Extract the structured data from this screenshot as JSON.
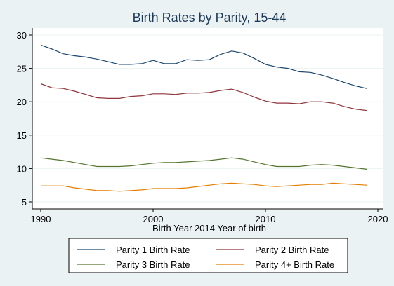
{
  "chart_data": {
    "type": "line",
    "title": "Birth Rates by Parity, 15-44",
    "xlabel": "Birth Year 2014 Year of birth",
    "ylabel": "",
    "xlim": [
      1990,
      2020
    ],
    "ylim": [
      5,
      30
    ],
    "xticks": [
      "1990",
      "2000",
      "2010",
      "2020"
    ],
    "yticks": [
      "5",
      "10",
      "15",
      "20",
      "25",
      "30"
    ],
    "grid": "horizontal",
    "legend_placement": "bottom",
    "x": [
      1990,
      1991,
      1992,
      1993,
      1994,
      1995,
      1996,
      1997,
      1998,
      1999,
      2000,
      2001,
      2002,
      2003,
      2004,
      2005,
      2006,
      2007,
      2008,
      2009,
      2010,
      2011,
      2012,
      2013,
      2014,
      2015,
      2016,
      2017,
      2018,
      2019
    ],
    "series": [
      {
        "name": "Parity 1 Birth Rate",
        "color": "#1a476f",
        "values": [
          28.5,
          27.9,
          27.2,
          26.9,
          26.7,
          26.4,
          26.0,
          25.6,
          25.6,
          25.7,
          26.2,
          25.7,
          25.7,
          26.3,
          26.2,
          26.3,
          27.1,
          27.6,
          27.3,
          26.5,
          25.6,
          25.2,
          25.0,
          24.5,
          24.4,
          24.0,
          23.5,
          22.9,
          22.4,
          22.0
        ]
      },
      {
        "name": "Parity 2 Birth Rate",
        "color": "#90353b",
        "values": [
          22.7,
          22.1,
          22.0,
          21.6,
          21.1,
          20.6,
          20.5,
          20.5,
          20.8,
          20.9,
          21.2,
          21.2,
          21.1,
          21.3,
          21.3,
          21.4,
          21.7,
          21.9,
          21.4,
          20.7,
          20.1,
          19.8,
          19.8,
          19.7,
          20.0,
          20.0,
          19.8,
          19.3,
          18.9,
          18.7
        ]
      },
      {
        "name": "Parity 3 Birth Rate",
        "color": "#55752f",
        "values": [
          11.6,
          11.4,
          11.2,
          10.9,
          10.6,
          10.3,
          10.3,
          10.3,
          10.4,
          10.6,
          10.8,
          10.9,
          10.9,
          11.0,
          11.1,
          11.2,
          11.4,
          11.6,
          11.4,
          11.0,
          10.6,
          10.3,
          10.3,
          10.3,
          10.5,
          10.6,
          10.5,
          10.3,
          10.1,
          9.9
        ]
      },
      {
        "name": "Parity 4+ Birth Rate",
        "color": "#e37e00",
        "values": [
          7.4,
          7.4,
          7.4,
          7.1,
          6.9,
          6.7,
          6.7,
          6.6,
          6.7,
          6.8,
          7.0,
          7.0,
          7.0,
          7.1,
          7.3,
          7.5,
          7.7,
          7.8,
          7.7,
          7.6,
          7.4,
          7.3,
          7.4,
          7.5,
          7.6,
          7.6,
          7.8,
          7.7,
          7.6,
          7.5
        ]
      }
    ]
  }
}
